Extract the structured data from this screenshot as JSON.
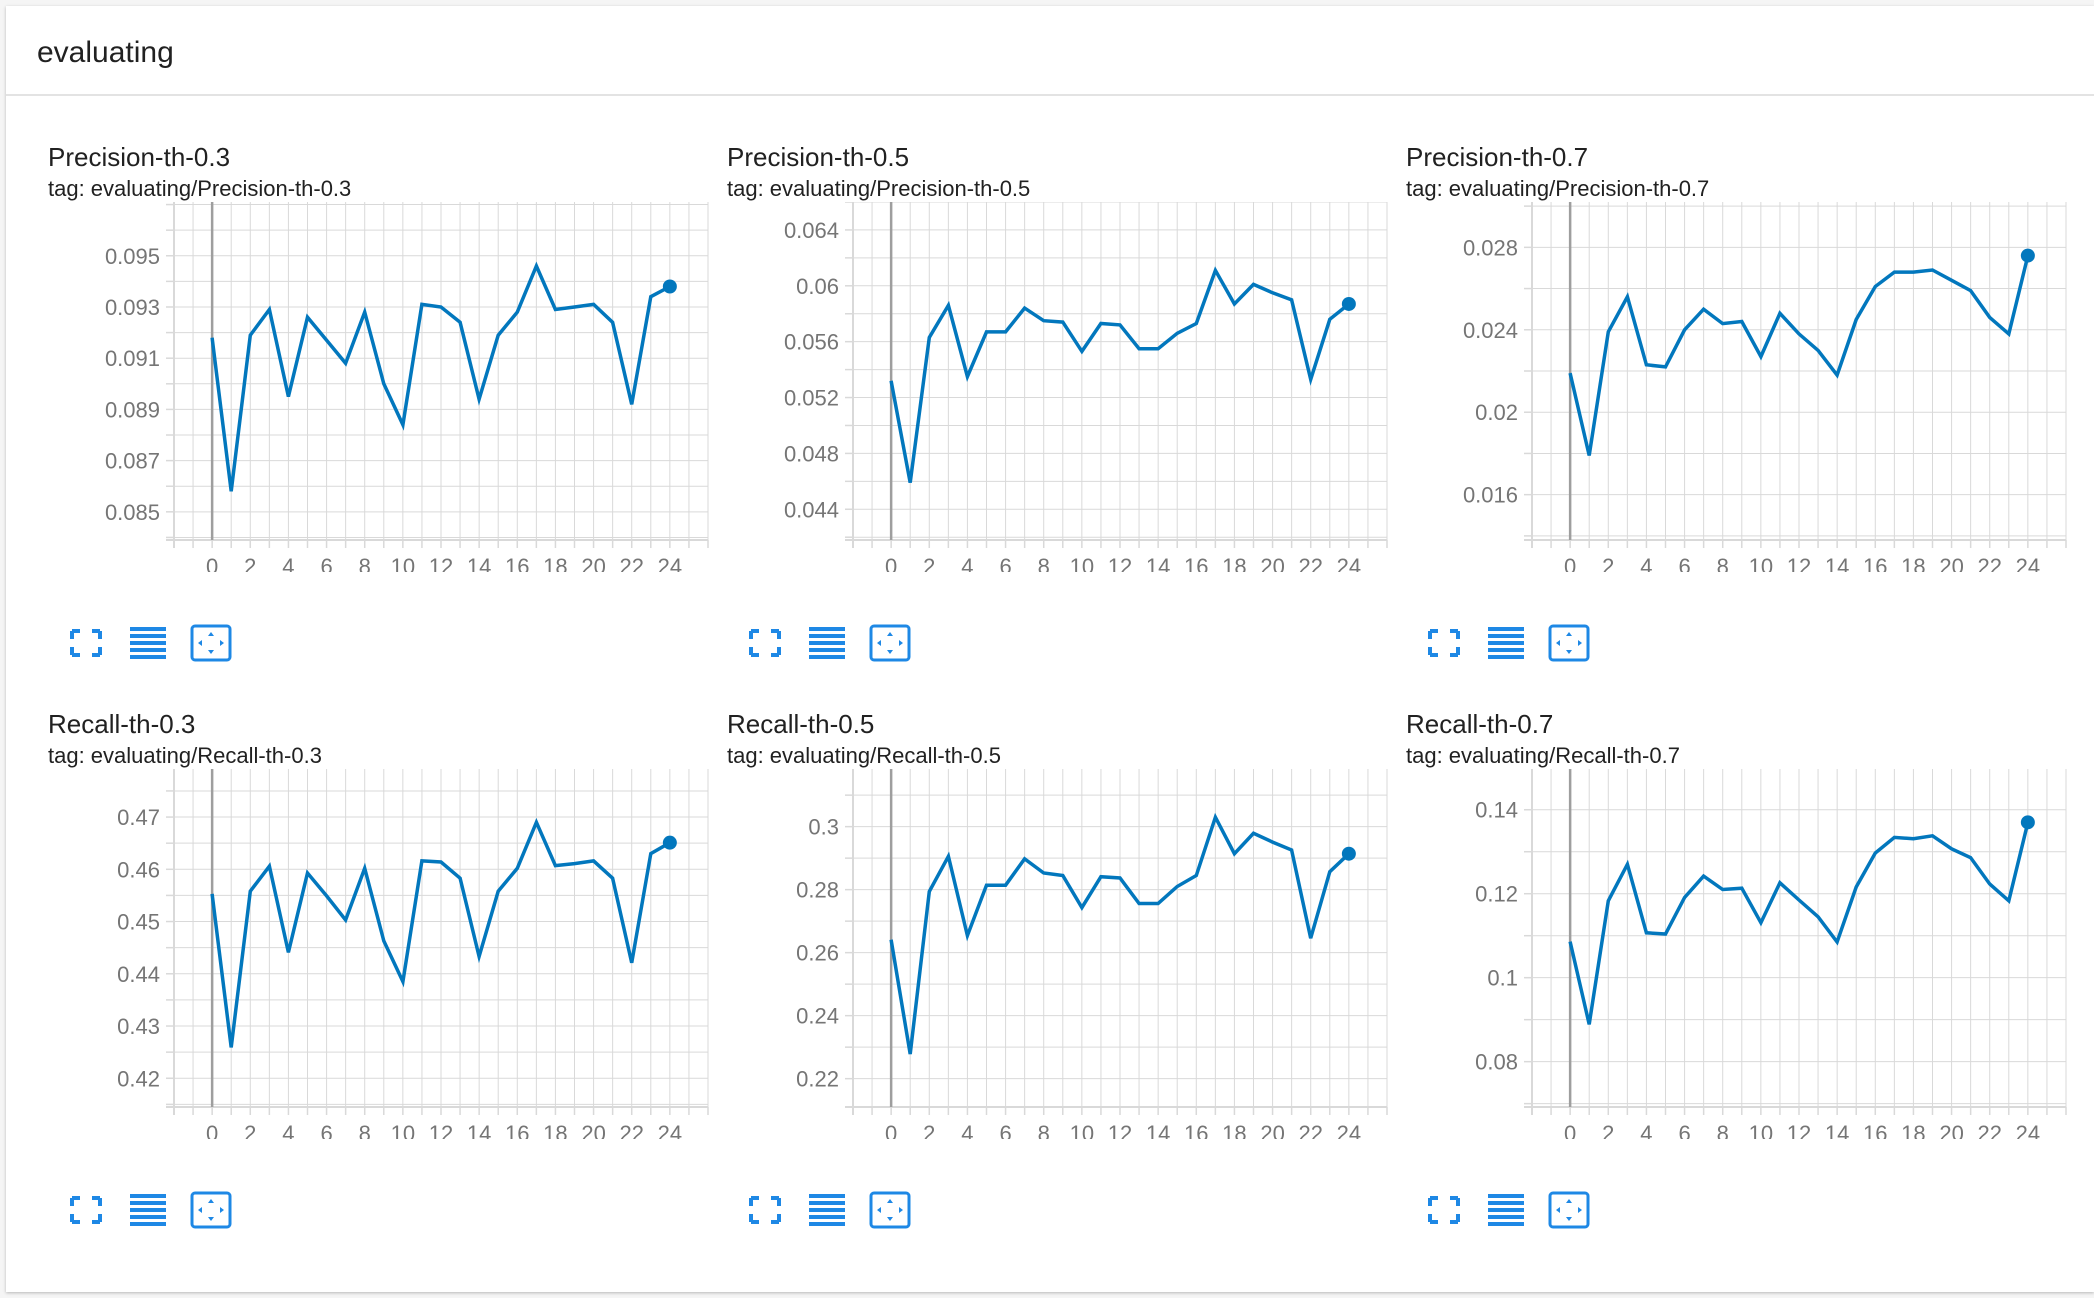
{
  "panel": {
    "title": "evaluating"
  },
  "toolbar_icons": [
    "fullscreen-icon",
    "toggle-log-scale-icon",
    "fit-domain-icon"
  ],
  "colors": {
    "line": "#0277bd",
    "grid": "#d9d9d9",
    "axis": "#9e9e9e",
    "tick_text": "#757575",
    "button": "#1e88e5"
  },
  "chart_data": [
    {
      "type": "line",
      "title": "Precision-th-0.3",
      "tag": "tag: evaluating/Precision-th-0.3",
      "xticks": [
        "0",
        "2",
        "4",
        "6",
        "8",
        "10",
        "12",
        "14",
        "16",
        "18",
        "20",
        "22",
        "24"
      ],
      "yticks": [
        "0.095",
        "0.093",
        "0.091",
        "0.089",
        "0.087",
        "0.085"
      ],
      "xlim": [
        -2,
        26
      ],
      "ylim": [
        0.0839,
        0.0971
      ],
      "grid": true,
      "x": [
        0,
        1,
        2,
        3,
        4,
        5,
        6,
        7,
        8,
        9,
        10,
        11,
        12,
        13,
        14,
        15,
        16,
        17,
        18,
        19,
        20,
        21,
        22,
        23,
        24
      ],
      "series": [
        {
          "values": [
            0.0918,
            0.0858,
            0.0919,
            0.0929,
            0.0895,
            0.0926,
            0.0917,
            0.0908,
            0.0928,
            0.09,
            0.0884,
            0.0931,
            0.093,
            0.0924,
            0.0894,
            0.0919,
            0.0928,
            0.0946,
            0.0929,
            0.093,
            0.0931,
            0.0924,
            0.0892,
            0.0934,
            0.0938
          ]
        }
      ]
    },
    {
      "type": "line",
      "title": "Precision-th-0.5",
      "tag": "tag: evaluating/Precision-th-0.5",
      "xticks": [
        "0",
        "2",
        "4",
        "6",
        "8",
        "10",
        "12",
        "14",
        "16",
        "18",
        "20",
        "22",
        "24"
      ],
      "yticks": [
        "0.064",
        "0.06",
        "0.056",
        "0.052",
        "0.048",
        "0.044"
      ],
      "xlim": [
        -2,
        26
      ],
      "ylim": [
        0.0418,
        0.066
      ],
      "grid": true,
      "x": [
        0,
        1,
        2,
        3,
        4,
        5,
        6,
        7,
        8,
        9,
        10,
        11,
        12,
        13,
        14,
        15,
        16,
        17,
        18,
        19,
        20,
        21,
        22,
        23,
        24
      ],
      "series": [
        {
          "values": [
            0.0532,
            0.0459,
            0.0563,
            0.0586,
            0.0535,
            0.0567,
            0.0567,
            0.0584,
            0.0575,
            0.0574,
            0.0553,
            0.0573,
            0.0572,
            0.0555,
            0.0555,
            0.0566,
            0.0573,
            0.0611,
            0.0587,
            0.0601,
            0.0595,
            0.059,
            0.0533,
            0.0576,
            0.0587
          ]
        }
      ]
    },
    {
      "type": "line",
      "title": "Precision-th-0.7",
      "tag": "tag: evaluating/Precision-th-0.7",
      "xticks": [
        "0",
        "2",
        "4",
        "6",
        "8",
        "10",
        "12",
        "14",
        "16",
        "18",
        "20",
        "22",
        "24"
      ],
      "yticks": [
        "0.028",
        "0.024",
        "0.02",
        "0.016"
      ],
      "xlim": [
        -2,
        26
      ],
      "ylim": [
        0.0138,
        0.0302
      ],
      "grid": true,
      "x": [
        0,
        1,
        2,
        3,
        4,
        5,
        6,
        7,
        8,
        9,
        10,
        11,
        12,
        13,
        14,
        15,
        16,
        17,
        18,
        19,
        20,
        21,
        22,
        23,
        24
      ],
      "series": [
        {
          "values": [
            0.0219,
            0.0179,
            0.0239,
            0.0256,
            0.0223,
            0.0222,
            0.024,
            0.025,
            0.0243,
            0.0244,
            0.0227,
            0.0248,
            0.0238,
            0.023,
            0.0218,
            0.0245,
            0.0261,
            0.0268,
            0.0268,
            0.0269,
            0.0264,
            0.0259,
            0.0246,
            0.0238,
            0.0276
          ]
        }
      ]
    },
    {
      "type": "line",
      "title": "Recall-th-0.3",
      "tag": "tag: evaluating/Recall-th-0.3",
      "xticks": [
        "0",
        "2",
        "4",
        "6",
        "8",
        "10",
        "12",
        "14",
        "16",
        "18",
        "20",
        "22",
        "24"
      ],
      "yticks": [
        "0.47",
        "0.46",
        "0.45",
        "0.44",
        "0.43",
        "0.42"
      ],
      "xlim": [
        -2,
        26
      ],
      "ylim": [
        0.4145,
        0.4792
      ],
      "grid": true,
      "x": [
        0,
        1,
        2,
        3,
        4,
        5,
        6,
        7,
        8,
        9,
        10,
        11,
        12,
        13,
        14,
        15,
        16,
        17,
        18,
        19,
        20,
        21,
        22,
        23,
        24
      ],
      "series": [
        {
          "values": [
            0.4553,
            0.4259,
            0.4558,
            0.4606,
            0.4441,
            0.4593,
            0.4549,
            0.4503,
            0.4602,
            0.4463,
            0.4385,
            0.4616,
            0.4614,
            0.4583,
            0.4433,
            0.4558,
            0.4602,
            0.469,
            0.4607,
            0.4611,
            0.4616,
            0.4583,
            0.4421,
            0.463,
            0.4651
          ]
        }
      ]
    },
    {
      "type": "line",
      "title": "Recall-th-0.5",
      "tag": "tag: evaluating/Recall-th-0.5",
      "xticks": [
        "0",
        "2",
        "4",
        "6",
        "8",
        "10",
        "12",
        "14",
        "16",
        "18",
        "20",
        "22",
        "24"
      ],
      "yticks": [
        "0.3",
        "0.28",
        "0.26",
        "0.24",
        "0.22"
      ],
      "xlim": [
        -2,
        26
      ],
      "ylim": [
        0.211,
        0.3183
      ],
      "grid": true,
      "x": [
        0,
        1,
        2,
        3,
        4,
        5,
        6,
        7,
        8,
        9,
        10,
        11,
        12,
        13,
        14,
        15,
        16,
        17,
        18,
        19,
        20,
        21,
        22,
        23,
        24
      ],
      "series": [
        {
          "values": [
            0.2641,
            0.2278,
            0.2794,
            0.2906,
            0.2654,
            0.2814,
            0.2814,
            0.2898,
            0.2853,
            0.2845,
            0.2743,
            0.2841,
            0.2837,
            0.2756,
            0.2756,
            0.281,
            0.2845,
            0.303,
            0.2914,
            0.2979,
            0.2951,
            0.2926,
            0.2646,
            0.2857,
            0.2914
          ]
        }
      ]
    },
    {
      "type": "line",
      "title": "Recall-th-0.7",
      "tag": "tag: evaluating/Recall-th-0.7",
      "xticks": [
        "0",
        "2",
        "4",
        "6",
        "8",
        "10",
        "12",
        "14",
        "16",
        "18",
        "20",
        "22",
        "24"
      ],
      "yticks": [
        "0.14",
        "0.12",
        "0.1",
        "0.08"
      ],
      "xlim": [
        -2,
        26
      ],
      "ylim": [
        0.0692,
        0.1497
      ],
      "grid": true,
      "x": [
        0,
        1,
        2,
        3,
        4,
        5,
        6,
        7,
        8,
        9,
        10,
        11,
        12,
        13,
        14,
        15,
        16,
        17,
        18,
        19,
        20,
        21,
        22,
        23,
        24
      ],
      "series": [
        {
          "values": [
            0.1086,
            0.0889,
            0.1183,
            0.127,
            0.1107,
            0.1104,
            0.1191,
            0.1242,
            0.121,
            0.1213,
            0.1131,
            0.1226,
            0.1185,
            0.1145,
            0.1085,
            0.1216,
            0.1297,
            0.1334,
            0.1331,
            0.1338,
            0.1307,
            0.1286,
            0.1223,
            0.1183,
            0.137
          ]
        }
      ]
    }
  ]
}
